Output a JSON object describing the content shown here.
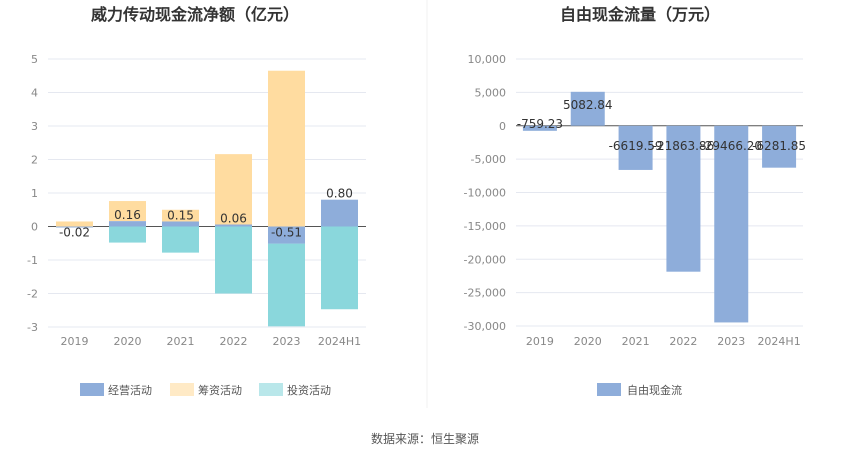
{
  "source_note": "数据来源：恒生聚源",
  "colors": {
    "operating": "#8EADDA",
    "financing": "#FFDCA0",
    "investing": "#8AD7DC",
    "free_cash_flow": "#8EADDA",
    "grid": "#E5E8F0",
    "axis": "#555555"
  },
  "chart_data": [
    {
      "type": "bar",
      "stacked": true,
      "title": "威力传动现金流净额（亿元）",
      "categories": [
        "2019",
        "2020",
        "2021",
        "2022",
        "2023",
        "2024H1"
      ],
      "ylim": [
        -3,
        5
      ],
      "yticks": [
        5,
        4,
        3,
        2,
        1,
        0,
        -1,
        -2,
        -3
      ],
      "grid": true,
      "legend_position": "bottom",
      "series": [
        {
          "name": "经营活动",
          "values": [
            -0.02,
            0.16,
            0.15,
            0.06,
            -0.51,
            0.8
          ]
        },
        {
          "name": "筹资活动",
          "values": [
            0.15,
            0.6,
            0.35,
            2.1,
            4.65,
            0.0
          ]
        },
        {
          "name": "投资活动",
          "values": [
            0.0,
            -0.48,
            -0.78,
            -2.0,
            -2.47,
            -2.47
          ]
        }
      ],
      "data_labels": [
        "-0.02",
        "0.16",
        "0.15",
        "0.06",
        "-0.51",
        "0.80"
      ]
    },
    {
      "type": "bar",
      "title": "自由现金流量（万元）",
      "categories": [
        "2019",
        "2020",
        "2021",
        "2022",
        "2023",
        "2024H1"
      ],
      "ylim": [
        -30000,
        10000
      ],
      "yticks": [
        "10,000",
        "5,000",
        "0",
        "-5,000",
        "-10,000",
        "-15,000",
        "-20,000",
        "-25,000",
        "-30,000"
      ],
      "grid": true,
      "legend_position": "bottom",
      "series": [
        {
          "name": "自由现金流",
          "values": [
            -759.23,
            5082.84,
            -6619.59,
            -21863.86,
            -29466.2,
            -6281.85
          ]
        }
      ],
      "data_labels": [
        "-759.23",
        "5082.84",
        "-6619.59",
        "-21863.86",
        "-29466.20",
        "-6281.85"
      ]
    }
  ]
}
